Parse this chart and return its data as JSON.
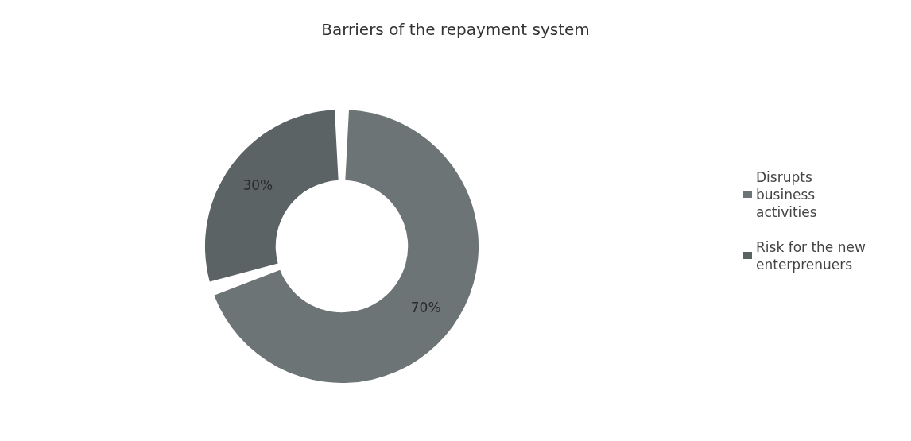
{
  "chart_data": {
    "type": "donut",
    "title": "Barriers of the repayment system",
    "categories": [
      "Disrupts business activities",
      "Risk for the new enterprenuers"
    ],
    "values": [
      70,
      30
    ],
    "value_labels": [
      "70%",
      "30%"
    ],
    "colors": [
      "#6d7476",
      "#5b6365"
    ],
    "legend": "right"
  }
}
